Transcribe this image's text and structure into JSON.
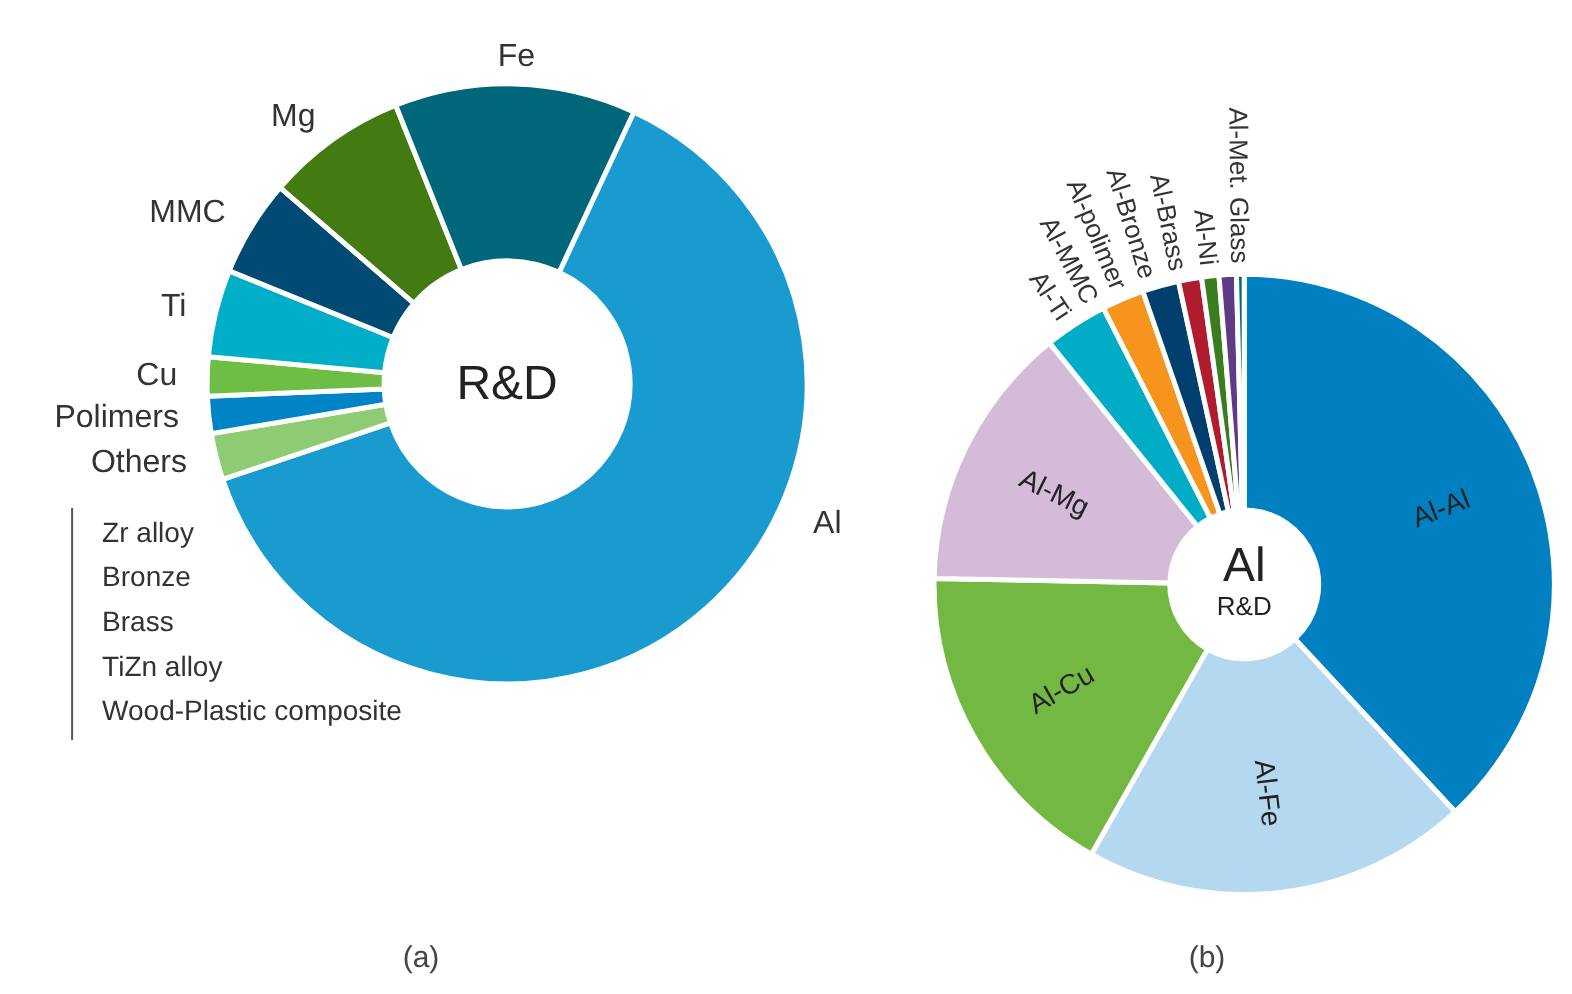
{
  "chart_data": [
    {
      "type": "donut",
      "title": "(a)",
      "categories": [
        "Al",
        "Others",
        "Polimers",
        "Cu",
        "Ti",
        "MMC",
        "Mg",
        "Fe"
      ],
      "values": [
        62.9,
        2.5,
        2,
        2.1,
        4.7,
        5.2,
        7.6,
        13
      ],
      "colors": [
        "#1a9bd0",
        "#8dcc72",
        "#0083c7",
        "#6ebd44",
        "#00aec8",
        "#004a73",
        "#437a12",
        "#00677a"
      ],
      "annotations": [
        "R&D",
        "Zr alloy",
        "Bronze",
        "Brass",
        "TiZn alloy",
        "Wood-Plastic composite"
      ]
    },
    {
      "type": "donut",
      "title": "(b)",
      "categories": [
        "Al-Al",
        "Al-Fe",
        "Al-Cu",
        "Al-Mg",
        "Al-Ti",
        "Al-MMC",
        "Al-polimer",
        "Al-Bronze",
        "Al-Brass",
        "Al-Ni",
        "Al-Met. Glass"
      ],
      "values": [
        38.1,
        20.1,
        17.1,
        13.9,
        3.3,
        2.2,
        1.9,
        1.2,
        0.9,
        0.9,
        0.4
      ],
      "colors": [
        "#0080c0",
        "#b4d8f0",
        "#72b843",
        "#d4bcd9",
        "#00acc6",
        "#f7941d",
        "#003f6e",
        "#b01c2e",
        "#3a7d1e",
        "#5e3a87",
        "#006e7a"
      ],
      "annotations": [
        "Al",
        "R&D"
      ]
    }
  ]
}
